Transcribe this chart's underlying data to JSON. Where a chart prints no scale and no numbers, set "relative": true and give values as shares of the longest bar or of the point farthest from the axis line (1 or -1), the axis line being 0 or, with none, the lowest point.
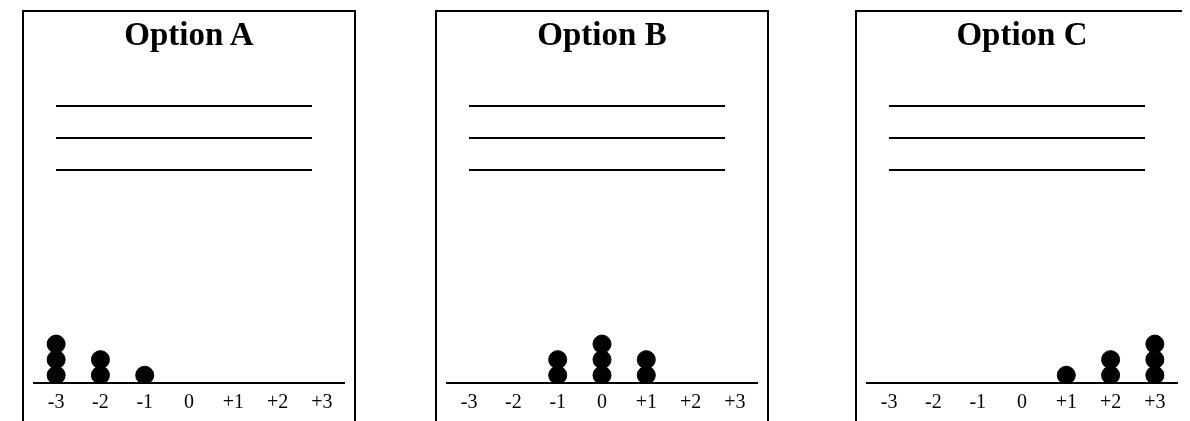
{
  "chart_data": [
    {
      "type": "scatter",
      "title": "Option A",
      "categories": [
        "-3",
        "-2",
        "-1",
        "0",
        "+1",
        "+2",
        "+3"
      ],
      "relative": true,
      "marker": "circle",
      "legend": false,
      "grid": false,
      "series": [
        {
          "color": "#000000",
          "x": [
            "-3",
            "-3",
            "-3",
            "-2",
            "-2",
            "-1"
          ],
          "values": [
            0.2,
            0.6,
            1,
            0.2,
            0.6,
            0.2
          ]
        }
      ]
    },
    {
      "type": "scatter",
      "title": "Option B",
      "categories": [
        "-3",
        "-2",
        "-1",
        "0",
        "+1",
        "+2",
        "+3"
      ],
      "relative": true,
      "marker": "circle",
      "legend": false,
      "grid": false,
      "series": [
        {
          "color": "#000000",
          "x": [
            "-1",
            "-1",
            "0",
            "0",
            "0",
            "+1",
            "+1"
          ],
          "values": [
            0.2,
            0.6,
            0.2,
            0.6,
            1,
            0.2,
            0.6
          ]
        }
      ]
    },
    {
      "type": "scatter",
      "title": "Option C",
      "categories": [
        "-3",
        "-2",
        "-1",
        "0",
        "+1",
        "+2",
        "+3"
      ],
      "relative": true,
      "marker": "circle",
      "legend": false,
      "grid": false,
      "series": [
        {
          "color": "#000000",
          "x": [
            "+1",
            "+2",
            "+2",
            "+3",
            "+3",
            "+3"
          ],
          "values": [
            0.2,
            0.2,
            0.6,
            0.2,
            0.6,
            1
          ]
        }
      ]
    }
  ]
}
